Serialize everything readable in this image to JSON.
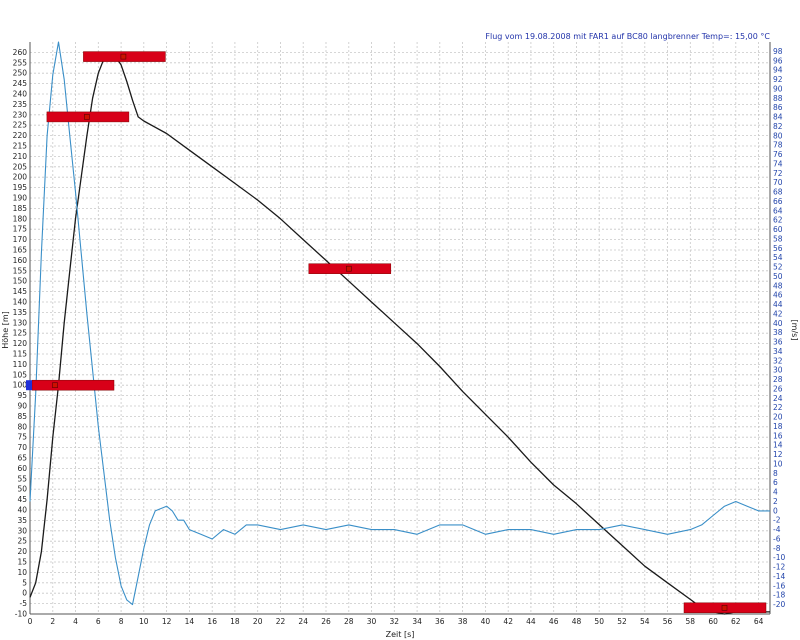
{
  "chart_data": {
    "type": "line",
    "title": "Flug vom 19.08.2008 mit FAR1 auf BC80 langbrenner Temp=: 15,00 °C",
    "xlabel": "Zeit [s]",
    "ylabel": "Höhe [m]",
    "y2label": "[m/s]",
    "xlim": [
      0,
      65
    ],
    "ylim": [
      -10,
      265
    ],
    "y2lim": [
      -22,
      100
    ],
    "x_ticks": [
      0,
      2,
      4,
      6,
      8,
      10,
      12,
      14,
      16,
      18,
      20,
      22,
      24,
      26,
      28,
      30,
      32,
      34,
      36,
      38,
      40,
      42,
      44,
      46,
      48,
      50,
      52,
      54,
      56,
      58,
      60,
      62,
      64
    ],
    "y_ticks": [
      -10,
      -5,
      0,
      5,
      10,
      15,
      20,
      25,
      30,
      35,
      40,
      45,
      50,
      55,
      60,
      65,
      70,
      75,
      80,
      85,
      90,
      95,
      100,
      105,
      110,
      115,
      120,
      125,
      130,
      135,
      140,
      145,
      150,
      155,
      160,
      165,
      170,
      175,
      180,
      185,
      190,
      195,
      200,
      205,
      210,
      215,
      220,
      225,
      230,
      235,
      240,
      245,
      250,
      255,
      260
    ],
    "y2_ticks": [
      -20,
      -18,
      -16,
      -14,
      -12,
      -10,
      -8,
      -6,
      -4,
      -2,
      0,
      2,
      4,
      6,
      8,
      10,
      12,
      14,
      16,
      18,
      20,
      22,
      24,
      26,
      28,
      30,
      32,
      34,
      36,
      38,
      40,
      42,
      44,
      46,
      48,
      50,
      52,
      54,
      56,
      58,
      60,
      62,
      64,
      66,
      68,
      70,
      72,
      74,
      76,
      78,
      80,
      82,
      84,
      86,
      88,
      90,
      92,
      94,
      96,
      98
    ],
    "grid": true,
    "series": [
      {
        "axis": "left",
        "color": "#1a1a1a",
        "points": [
          [
            0,
            -2
          ],
          [
            0.5,
            5
          ],
          [
            1,
            20
          ],
          [
            1.5,
            45
          ],
          [
            2,
            75
          ],
          [
            2.5,
            100
          ],
          [
            3,
            130
          ],
          [
            3.5,
            155
          ],
          [
            4,
            180
          ],
          [
            4.5,
            200
          ],
          [
            5,
            220
          ],
          [
            5.5,
            238
          ],
          [
            6,
            250
          ],
          [
            6.5,
            257
          ],
          [
            7,
            259
          ],
          [
            7.5,
            258
          ],
          [
            8,
            254
          ],
          [
            8.5,
            246
          ],
          [
            9,
            237
          ],
          [
            9.5,
            229
          ],
          [
            10,
            227
          ],
          [
            12,
            221
          ],
          [
            14,
            213
          ],
          [
            16,
            205
          ],
          [
            18,
            197
          ],
          [
            20,
            189
          ],
          [
            22,
            180
          ],
          [
            24,
            170
          ],
          [
            26,
            160
          ],
          [
            28,
            150
          ],
          [
            30,
            140
          ],
          [
            32,
            130
          ],
          [
            34,
            120
          ],
          [
            36,
            109
          ],
          [
            38,
            97
          ],
          [
            40,
            86
          ],
          [
            42,
            75
          ],
          [
            44,
            63
          ],
          [
            46,
            52
          ],
          [
            48,
            43
          ],
          [
            50,
            33
          ],
          [
            52,
            23
          ],
          [
            54,
            13
          ],
          [
            56,
            5
          ],
          [
            58,
            -3
          ],
          [
            59,
            -7
          ],
          [
            60,
            -9
          ],
          [
            61,
            -10
          ],
          [
            62,
            -9
          ],
          [
            63,
            -8
          ],
          [
            64,
            -9
          ],
          [
            65,
            -9
          ]
        ]
      },
      {
        "axis": "right",
        "color": "#3a8fc8",
        "points": [
          [
            0,
            2
          ],
          [
            0.5,
            25
          ],
          [
            1,
            55
          ],
          [
            1.5,
            80
          ],
          [
            2,
            93
          ],
          [
            2.5,
            100
          ],
          [
            3,
            92
          ],
          [
            3.5,
            80
          ],
          [
            4,
            68
          ],
          [
            4.5,
            55
          ],
          [
            5,
            42
          ],
          [
            5.5,
            30
          ],
          [
            6,
            18
          ],
          [
            6.5,
            8
          ],
          [
            7,
            -2
          ],
          [
            7.5,
            -10
          ],
          [
            8,
            -16
          ],
          [
            8.5,
            -19
          ],
          [
            9,
            -20
          ],
          [
            9.5,
            -14
          ],
          [
            10,
            -8
          ],
          [
            10.5,
            -3
          ],
          [
            11,
            0
          ],
          [
            12,
            1
          ],
          [
            12.5,
            0
          ],
          [
            13,
            -2
          ],
          [
            13.5,
            -2
          ],
          [
            14,
            -4
          ],
          [
            15,
            -5
          ],
          [
            16,
            -6
          ],
          [
            17,
            -4
          ],
          [
            18,
            -5
          ],
          [
            19,
            -3
          ],
          [
            20,
            -3
          ],
          [
            22,
            -4
          ],
          [
            24,
            -3
          ],
          [
            26,
            -4
          ],
          [
            28,
            -3
          ],
          [
            30,
            -4
          ],
          [
            32,
            -4
          ],
          [
            34,
            -5
          ],
          [
            36,
            -3
          ],
          [
            38,
            -3
          ],
          [
            40,
            -5
          ],
          [
            42,
            -4
          ],
          [
            44,
            -4
          ],
          [
            46,
            -5
          ],
          [
            48,
            -4
          ],
          [
            50,
            -4
          ],
          [
            52,
            -3
          ],
          [
            54,
            -4
          ],
          [
            56,
            -5
          ],
          [
            58,
            -4
          ],
          [
            59,
            -3
          ],
          [
            60,
            -1
          ],
          [
            61,
            1
          ],
          [
            62,
            2
          ],
          [
            63,
            1
          ],
          [
            64,
            0
          ],
          [
            65,
            0
          ]
        ]
      }
    ],
    "markers": [
      {
        "x": 2.2,
        "y": 100,
        "label": "",
        "color": "#d80018",
        "swatch": "#1f2fd8"
      },
      {
        "x": 5.0,
        "y": 229,
        "label": "",
        "color": "#d80018"
      },
      {
        "x": 8.2,
        "y": 258,
        "label": "",
        "color": "#d80018"
      },
      {
        "x": 28.0,
        "y": 156,
        "label": "",
        "color": "#d80018"
      },
      {
        "x": 61.0,
        "y": -7,
        "label": "",
        "color": "#d80018"
      }
    ]
  }
}
